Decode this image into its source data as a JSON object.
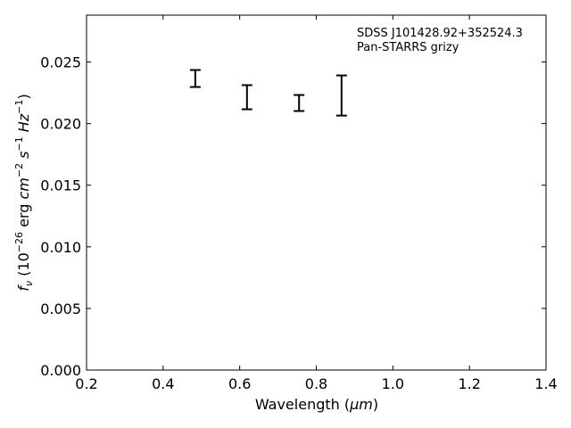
{
  "chart_data": {
    "type": "errorbar",
    "x_label": [
      "Wavelength (",
      "μm",
      ")"
    ],
    "y_label": [
      "f",
      "ν",
      " (10",
      "−26",
      " erg ",
      "cm",
      "−2",
      " s",
      "−1",
      " Hz",
      "−1",
      ")"
    ],
    "annotation": [
      "SDSS J101428.92+352524.3",
      "Pan-STARRS grizy"
    ],
    "x": [
      0.484,
      0.619,
      0.755,
      0.866
    ],
    "series": [
      {
        "color": "#000000",
        "values": [
          0.02366,
          0.02214,
          0.02167,
          0.02228
        ],
        "errors": [
          0.00069,
          0.00098,
          0.00065,
          0.00163
        ]
      }
    ],
    "xlim": [
      0.2,
      1.4
    ],
    "xticks": [
      0.2,
      0.4,
      0.6,
      0.8,
      {
        "value": 1,
        "label": "1.0"
      },
      1.2,
      1.4
    ],
    "ylim": [
      0,
      0.0288
    ],
    "yticks": [
      {
        "value": 0,
        "label": "0.000"
      },
      0.005,
      {
        "value": 0.01,
        "label": "0.010"
      },
      0.015,
      {
        "value": 0.02,
        "label": "0.020"
      },
      0.025
    ],
    "grid": false
  }
}
